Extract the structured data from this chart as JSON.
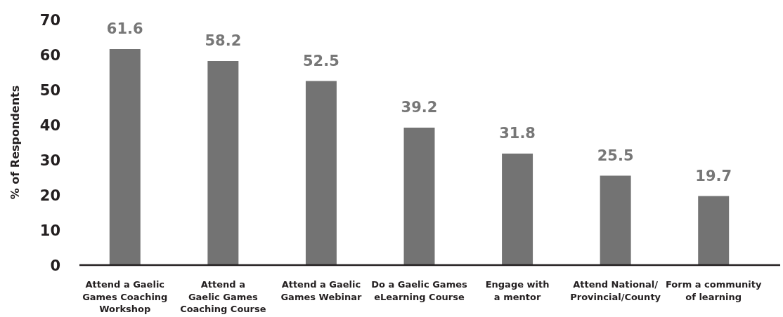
{
  "chart_data": {
    "type": "bar",
    "ylabel": "% of Respondents",
    "categories": [
      "Attend a Gaelic\nGames Coaching\nWorkshop",
      "Attend a\nGaelic Games\nCoaching Course",
      "Attend a Gaelic\nGames Webinar",
      "Do a Gaelic Games\neLearning Course",
      "Engage with\na mentor",
      "Attend National/\nProvincial/County",
      "Form a community\nof learning"
    ],
    "values": [
      61.6,
      58.2,
      52.5,
      39.2,
      31.8,
      25.5,
      19.7
    ],
    "color": "#737373",
    "ylim": [
      0,
      70
    ],
    "yticks": [
      0,
      10,
      20,
      30,
      40,
      50,
      60,
      70
    ],
    "grid": false,
    "data_labels": true
  }
}
